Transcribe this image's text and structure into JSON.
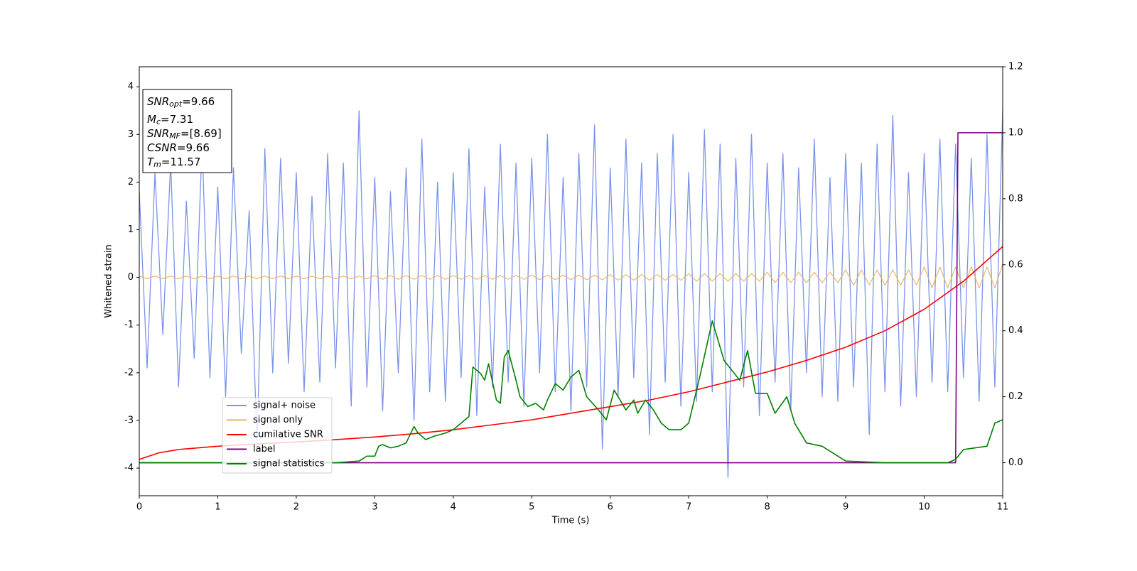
{
  "chart_data": {
    "type": "line",
    "xlabel": "Time (s)",
    "ylabel": "Whitened strain",
    "xlim": [
      0,
      11
    ],
    "ylim": [
      -4.58,
      4.42
    ],
    "y2lim": [
      -0.1,
      1.2
    ],
    "xticks": [
      0,
      1,
      2,
      3,
      4,
      5,
      6,
      7,
      8,
      9,
      10,
      11
    ],
    "yticks": [
      -4,
      -3,
      -2,
      -1,
      0,
      1,
      2,
      3,
      4
    ],
    "y2ticks": [
      {
        "value": 0,
        "label": "0.0"
      },
      0.2,
      0.4,
      0.6,
      0.8,
      {
        "value": 1,
        "label": "1.0"
      },
      1.2
    ],
    "legend_loc": "lower left",
    "x": [
      0,
      0.1,
      0.2,
      0.3,
      0.4,
      0.5,
      0.6,
      0.7,
      0.8,
      0.9,
      1,
      1.1,
      1.2,
      1.3,
      1.4,
      1.5,
      1.6,
      1.7,
      1.8,
      1.9,
      2,
      2.1,
      2.2,
      2.3,
      2.4,
      2.5,
      2.6,
      2.7,
      2.8,
      2.9,
      3,
      3.1,
      3.2,
      3.3,
      3.4,
      3.5,
      3.6,
      3.7,
      3.8,
      3.9,
      4,
      4.1,
      4.2,
      4.3,
      4.4,
      4.5,
      4.6,
      4.7,
      4.8,
      4.9,
      5,
      5.1,
      5.2,
      5.3,
      5.4,
      5.5,
      5.6,
      5.7,
      5.8,
      5.9,
      6,
      6.1,
      6.2,
      6.3,
      6.4,
      6.5,
      6.6,
      6.7,
      6.8,
      6.9,
      7,
      7.1,
      7.2,
      7.3,
      7.4,
      7.5,
      7.6,
      7.7,
      7.8,
      7.9,
      8,
      8.1,
      8.2,
      8.3,
      8.4,
      8.5,
      8.6,
      8.7,
      8.8,
      8.9,
      9,
      9.1,
      9.2,
      9.3,
      9.4,
      9.5,
      9.6,
      9.7,
      9.8,
      9.9,
      10,
      10.1,
      10.2,
      10.3,
      10.4,
      10.5,
      10.6,
      10.7,
      10.8,
      10.9,
      11
    ],
    "series": [
      {
        "name": "signal+ noise",
        "color": "#7b93e8",
        "values": [
          1.8,
          -1.9,
          2.2,
          -1.2,
          2.4,
          -2.3,
          1.6,
          -1.7,
          2.8,
          -2.1,
          1.9,
          -2.5,
          2.3,
          -1.6,
          1.4,
          -3.5,
          2.7,
          -2.0,
          2.5,
          -1.8,
          2.2,
          -2.4,
          1.7,
          -2.2,
          2.6,
          -1.9,
          2.4,
          -2.7,
          3.5,
          -2.3,
          2.1,
          -2.8,
          1.8,
          -2.0,
          2.3,
          -3.0,
          2.9,
          -2.4,
          2.0,
          -2.6,
          2.2,
          -2.1,
          2.7,
          -2.9,
          1.9,
          -2.3,
          2.8,
          -2.2,
          2.4,
          -2.7,
          2.5,
          -2.0,
          3.0,
          -2.4,
          2.1,
          -2.8,
          2.6,
          -2.3,
          3.2,
          -3.6,
          2.3,
          -2.5,
          2.9,
          -2.1,
          2.4,
          -3.3,
          2.6,
          -2.2,
          3.0,
          -2.7,
          2.2,
          -2.6,
          3.1,
          -2.4,
          2.8,
          -4.2,
          2.5,
          -2.3,
          3.0,
          -2.9,
          2.4,
          -2.2,
          2.6,
          -2.8,
          2.3,
          -2.0,
          2.9,
          -2.5,
          2.1,
          -2.6,
          2.6,
          -2.3,
          2.4,
          -3.3,
          2.8,
          -2.4,
          3.4,
          -2.7,
          2.2,
          -2.5,
          2.6,
          -2.2,
          2.9,
          -2.4,
          2.8,
          -2.1,
          2.5,
          -2.6,
          3.0,
          -2.3,
          3.5
        ]
      },
      {
        "name": "signal only",
        "color": "#e8b060",
        "values": [
          0.03,
          -0.03,
          0.03,
          -0.03,
          0.03,
          -0.03,
          0.03,
          -0.03,
          0.03,
          -0.03,
          0.03,
          -0.03,
          0.03,
          -0.03,
          0.03,
          -0.03,
          0.03,
          -0.03,
          0.03,
          -0.03,
          0.03,
          -0.03,
          0.03,
          -0.03,
          0.03,
          -0.03,
          0.03,
          -0.03,
          0.03,
          -0.03,
          0.04,
          -0.04,
          0.04,
          -0.04,
          0.04,
          -0.04,
          0.04,
          -0.04,
          0.04,
          -0.04,
          0.04,
          -0.04,
          0.04,
          -0.04,
          0.04,
          -0.04,
          0.04,
          -0.04,
          0.04,
          -0.04,
          0.05,
          -0.05,
          0.05,
          -0.05,
          0.05,
          -0.05,
          0.05,
          -0.05,
          0.05,
          -0.05,
          0.06,
          -0.06,
          0.06,
          -0.06,
          0.06,
          -0.06,
          0.06,
          -0.06,
          0.06,
          -0.06,
          0.08,
          -0.08,
          0.08,
          -0.08,
          0.08,
          -0.08,
          0.08,
          -0.08,
          0.08,
          -0.08,
          0.11,
          -0.11,
          0.11,
          -0.11,
          0.11,
          -0.11,
          0.11,
          -0.11,
          0.11,
          -0.11,
          0.16,
          -0.16,
          0.16,
          -0.16,
          0.16,
          -0.16,
          0.16,
          -0.16,
          0.16,
          -0.16,
          0.22,
          -0.22,
          0.22,
          -0.22,
          0.22,
          -0.22,
          0.22,
          -0.22,
          0.22,
          -0.22,
          0.28
        ]
      },
      {
        "name": "cumilative SNR",
        "color": "#ff0000",
        "axis": "y2",
        "x": [
          0,
          0.25,
          0.5,
          1,
          1.5,
          2,
          2.5,
          3,
          3.5,
          4,
          4.5,
          5,
          5.5,
          6,
          6.5,
          7,
          7.5,
          8,
          8.5,
          9,
          9.5,
          10,
          10.5,
          11
        ],
        "values": [
          0.01,
          0.03,
          0.04,
          0.05,
          0.057,
          0.063,
          0.07,
          0.078,
          0.088,
          0.1,
          0.115,
          0.13,
          0.15,
          0.17,
          0.19,
          0.215,
          0.245,
          0.275,
          0.31,
          0.35,
          0.4,
          0.465,
          0.55,
          0.655
        ]
      },
      {
        "name": "label",
        "color": "#800080",
        "axis": "y2",
        "x": [
          0,
          10.4,
          10.43,
          11
        ],
        "values": [
          0,
          0,
          1,
          1
        ]
      },
      {
        "name": "signal statistics",
        "color": "#008000",
        "axis": "y2",
        "x": [
          0,
          2.5,
          2.8,
          2.9,
          3,
          3.05,
          3.1,
          3.2,
          3.3,
          3.4,
          3.5,
          3.55,
          3.65,
          3.75,
          3.9,
          4,
          4.1,
          4.2,
          4.25,
          4.35,
          4.4,
          4.45,
          4.55,
          4.6,
          4.65,
          4.7,
          4.8,
          4.85,
          4.95,
          5.05,
          5.15,
          5.2,
          5.3,
          5.4,
          5.5,
          5.6,
          5.7,
          5.85,
          5.95,
          6.05,
          6.2,
          6.3,
          6.35,
          6.45,
          6.55,
          6.65,
          6.75,
          6.9,
          7,
          7.15,
          7.3,
          7.45,
          7.55,
          7.65,
          7.75,
          7.85,
          8,
          8.1,
          8.25,
          8.35,
          8.5,
          8.7,
          9,
          9.5,
          10.3,
          10.4,
          10.5,
          10.8,
          10.9,
          11
        ],
        "values": [
          0,
          0,
          0.005,
          0.02,
          0.02,
          0.05,
          0.055,
          0.045,
          0.05,
          0.06,
          0.11,
          0.09,
          0.07,
          0.08,
          0.09,
          0.1,
          0.12,
          0.14,
          0.29,
          0.27,
          0.25,
          0.3,
          0.19,
          0.18,
          0.32,
          0.34,
          0.25,
          0.2,
          0.17,
          0.18,
          0.16,
          0.19,
          0.24,
          0.22,
          0.26,
          0.28,
          0.2,
          0.16,
          0.13,
          0.22,
          0.16,
          0.19,
          0.15,
          0.19,
          0.16,
          0.12,
          0.1,
          0.1,
          0.12,
          0.27,
          0.43,
          0.31,
          0.28,
          0.25,
          0.34,
          0.21,
          0.21,
          0.15,
          0.2,
          0.12,
          0.06,
          0.05,
          0.005,
          0,
          0,
          0.01,
          0.04,
          0.05,
          0.12,
          0.13
        ]
      }
    ],
    "annotation": [
      {
        "symbol": "SNR",
        "subscript": "opt",
        "text": "=9.66"
      },
      {
        "symbol": "M",
        "subscript": "c",
        "text": "=7.31"
      },
      {
        "symbol": "SNR",
        "subscript": "MF",
        "text": "=[8.69]"
      },
      {
        "symbol": "CSNR",
        "text": "=9.66"
      },
      {
        "symbol": "T",
        "subscript": "m",
        "text": "=11.57"
      }
    ]
  }
}
